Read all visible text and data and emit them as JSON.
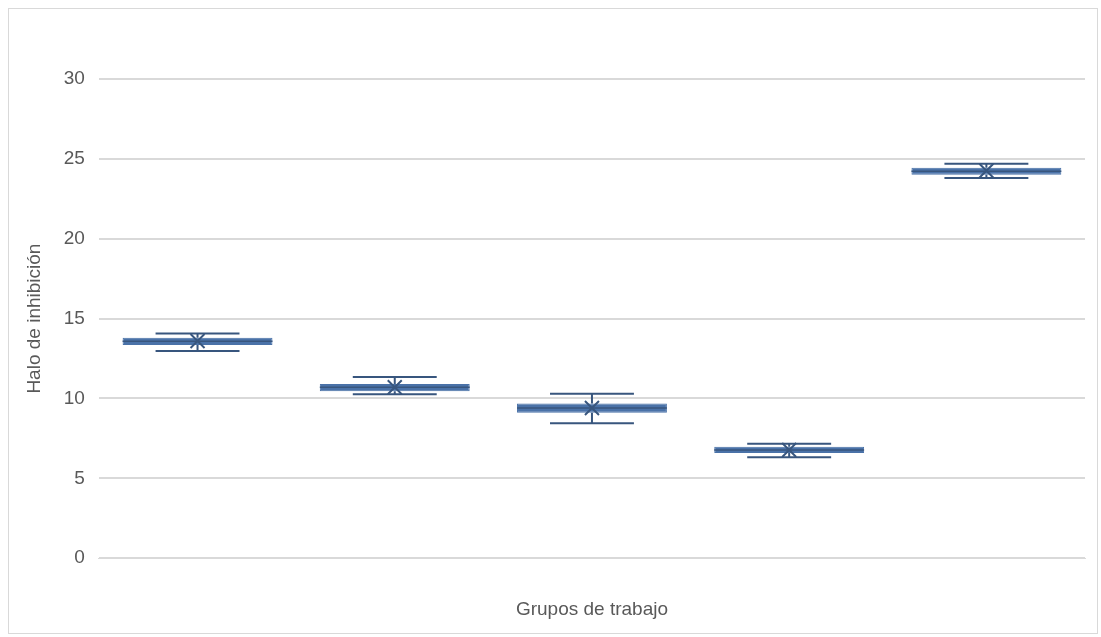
{
  "chart_data": {
    "type": "box",
    "xlabel": "Grupos de trabajo",
    "ylabel": "Halo de inhibición",
    "categories": [
      null,
      null,
      null,
      null,
      null
    ],
    "color": "#4a72a8",
    "boxes": [
      {
        "low": 12.97,
        "q1": 13.35,
        "median": 13.58,
        "q3": 13.8,
        "high": 14.06,
        "mean": 13.6
      },
      {
        "low": 10.26,
        "q1": 10.45,
        "median": 10.7,
        "q3": 10.9,
        "high": 11.35,
        "mean": 10.7
      },
      {
        "low": 8.45,
        "q1": 9.1,
        "median": 9.4,
        "q3": 9.68,
        "high": 10.3,
        "mean": 9.4
      },
      {
        "low": 6.32,
        "q1": 6.58,
        "median": 6.77,
        "q3": 6.97,
        "high": 7.16,
        "mean": 6.77
      },
      {
        "low": 23.8,
        "q1": 24.0,
        "median": 24.22,
        "q3": 24.45,
        "high": 24.7,
        "mean": 24.26
      }
    ],
    "ylim": [
      0,
      30
    ],
    "yticks": [
      0,
      5,
      10,
      15,
      20,
      25,
      30
    ],
    "grid": "y",
    "legend": false
  }
}
